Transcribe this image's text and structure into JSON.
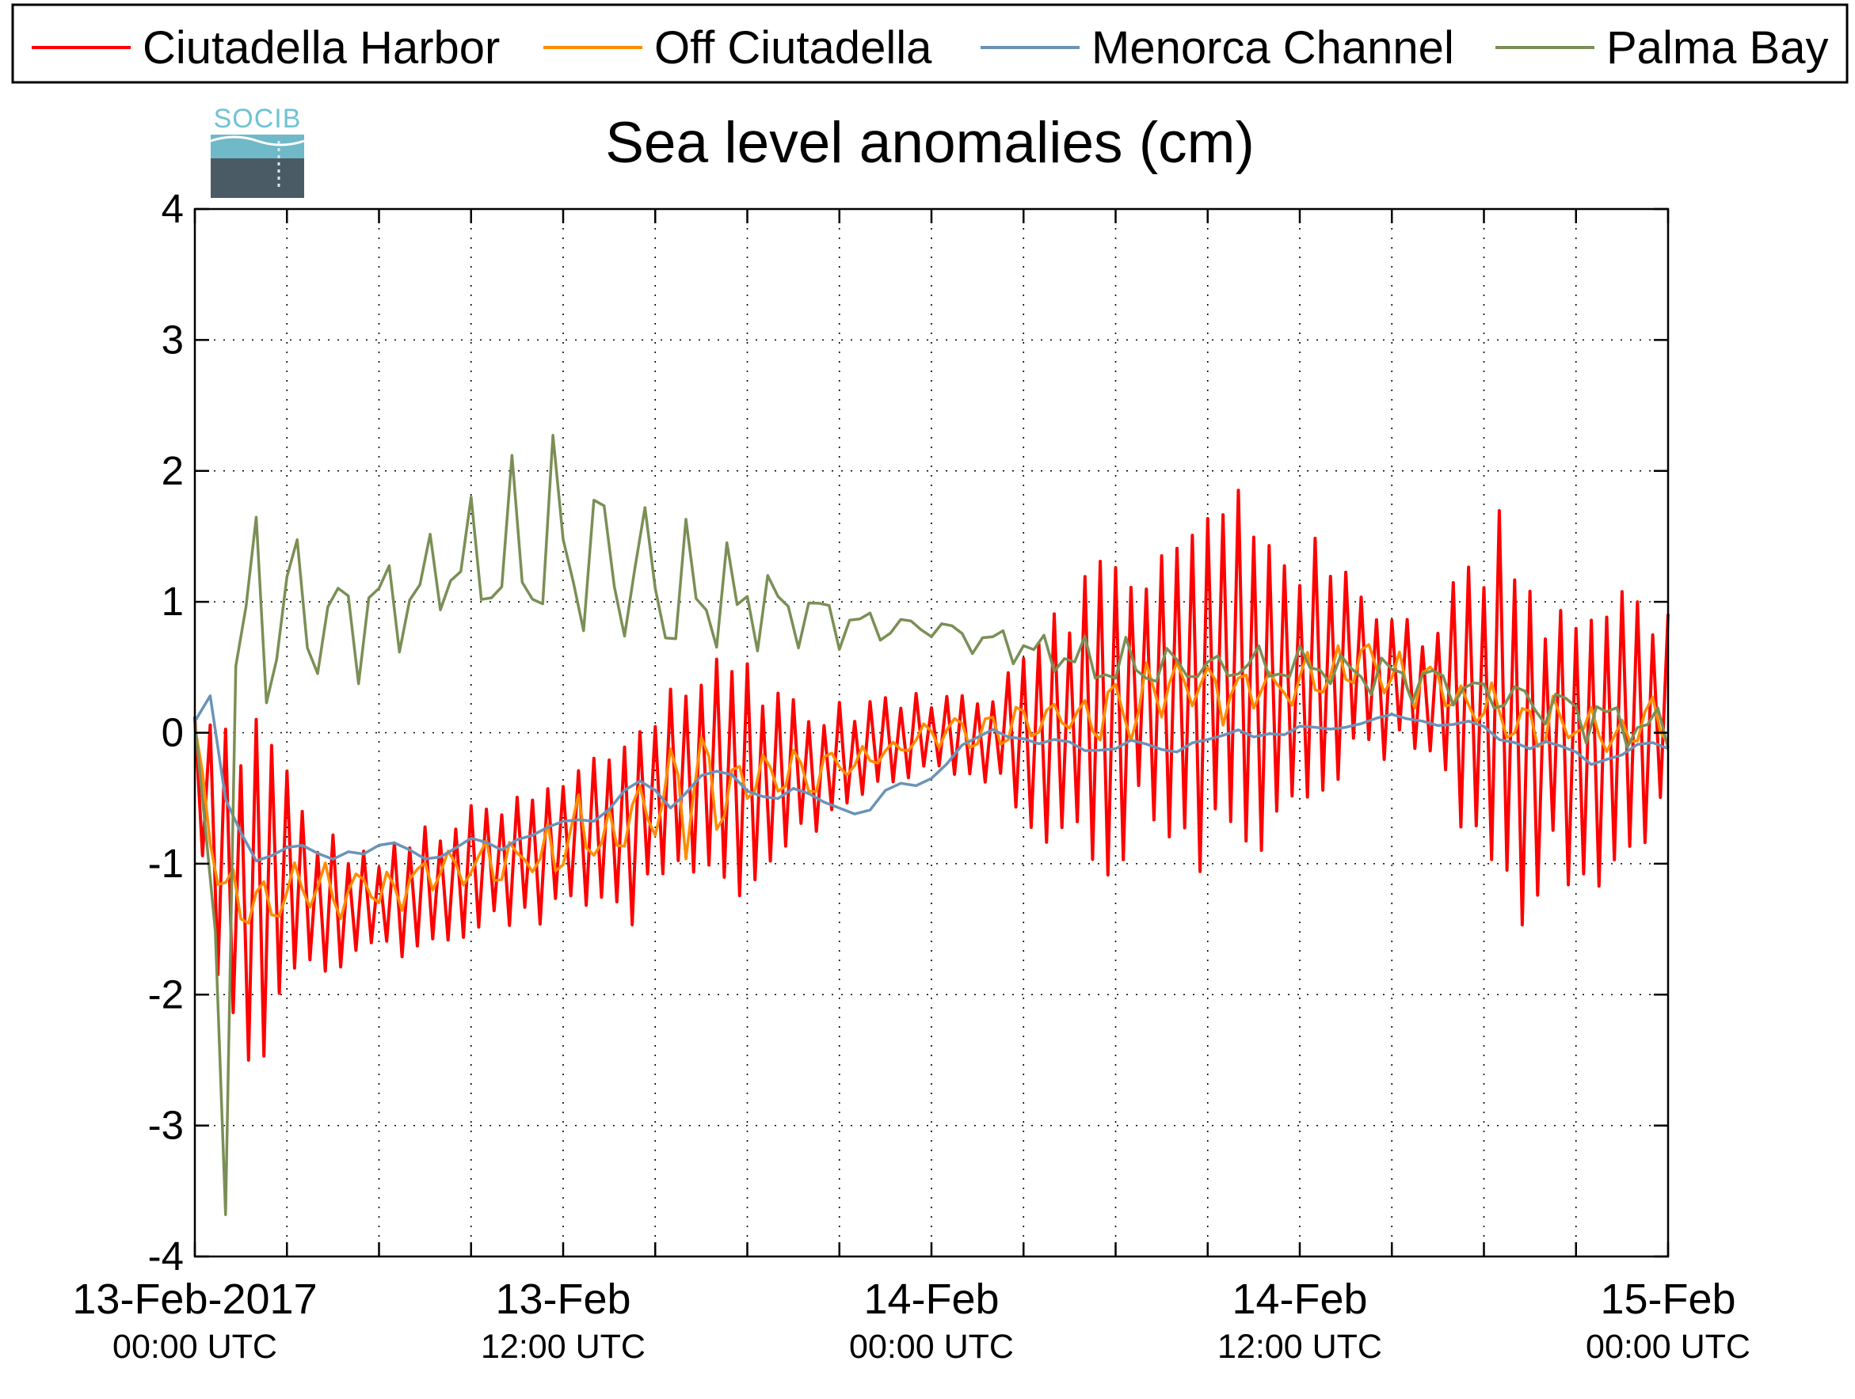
{
  "chart_data": {
    "type": "line",
    "title": "Sea level anomalies (cm)",
    "xlabel": "",
    "ylabel": "",
    "ylim": [
      -4,
      4
    ],
    "yticks": [
      "-4",
      "-3",
      "-2",
      "-1",
      "0",
      "1",
      "2",
      "3",
      "4"
    ],
    "xlim": [
      "2017-02-13T00:00",
      "2017-02-15T00:00"
    ],
    "xtick_labels": [
      {
        "x": "2017-02-13T00:00",
        "date": "13-Feb-2017",
        "time": "00:00 UTC"
      },
      {
        "x": "2017-02-13T12:00",
        "date": "13-Feb",
        "time": "12:00 UTC"
      },
      {
        "x": "2017-02-14T00:00",
        "date": "14-Feb",
        "time": "00:00 UTC"
      },
      {
        "x": "2017-02-14T12:00",
        "date": "14-Feb",
        "time": "12:00 UTC"
      },
      {
        "x": "2017-02-15T00:00",
        "date": "15-Feb",
        "time": "00:00 UTC"
      }
    ],
    "minor_tick_interval_hours": 3,
    "grid": true,
    "legend_position": "top",
    "logo_text": "SOCIB",
    "series": [
      {
        "name": "Ciutadella Harbor",
        "color": "#ff0000",
        "sample_interval_min": 15,
        "envelope_hours": [
          0,
          1,
          2,
          3,
          4,
          6,
          8,
          10,
          12,
          14,
          16,
          18,
          19,
          20,
          22,
          24,
          26,
          28,
          30,
          31,
          32,
          34,
          36,
          38,
          40,
          42,
          43,
          44,
          46,
          48
        ],
        "envelope_mean": [
          -0.3,
          -1.0,
          -1.2,
          -1.2,
          -1.3,
          -1.3,
          -1.2,
          -1.0,
          -0.9,
          -0.7,
          -0.4,
          -0.3,
          -0.3,
          -0.3,
          -0.1,
          0.0,
          0.0,
          0.1,
          0.2,
          0.3,
          0.3,
          0.4,
          0.4,
          0.5,
          0.3,
          0.2,
          0.1,
          0.0,
          0.0,
          0.1
        ],
        "envelope_amplitude": [
          0.5,
          1.2,
          1.5,
          1.0,
          0.6,
          0.4,
          0.6,
          0.5,
          0.6,
          0.8,
          1.0,
          1.0,
          0.8,
          0.5,
          0.4,
          0.3,
          0.4,
          1.1,
          1.3,
          1.2,
          1.3,
          1.7,
          1.2,
          0.7,
          0.6,
          1.4,
          1.8,
          1.1,
          1.3,
          0.9
        ]
      },
      {
        "name": "Off Ciutadella",
        "color": "#ff8c00",
        "sample_interval_min": 15,
        "envelope_hours": [
          0,
          1,
          2,
          4,
          6,
          8,
          10,
          12,
          14,
          16,
          18,
          20,
          22,
          24,
          26,
          28,
          30,
          32,
          34,
          36,
          38,
          40,
          42,
          44,
          46,
          48
        ],
        "envelope_mean": [
          0.0,
          -1.3,
          -1.3,
          -1.2,
          -1.2,
          -1.1,
          -1.0,
          -0.9,
          -0.7,
          -0.5,
          -0.3,
          -0.3,
          -0.2,
          0.0,
          0.0,
          0.1,
          0.2,
          0.3,
          0.3,
          0.4,
          0.5,
          0.4,
          0.2,
          0.1,
          0.0,
          0.1
        ],
        "envelope_amplitude": [
          0.3,
          0.4,
          0.3,
          0.2,
          0.2,
          0.2,
          0.3,
          0.3,
          0.5,
          0.5,
          0.3,
          0.2,
          0.1,
          0.1,
          0.15,
          0.2,
          0.25,
          0.25,
          0.25,
          0.2,
          0.2,
          0.2,
          0.25,
          0.25,
          0.2,
          0.25
        ]
      },
      {
        "name": "Menorca Channel",
        "color": "#6a93b8",
        "sample_interval_min": 30,
        "envelope_hours": [
          0,
          0.5,
          1,
          2,
          4,
          6,
          8,
          10,
          12,
          14,
          16,
          18,
          20,
          22,
          24,
          26,
          28,
          30,
          32,
          34,
          36,
          38,
          40,
          42,
          44,
          46,
          48
        ],
        "envelope_mean": [
          0.1,
          0.2,
          -0.5,
          -0.9,
          -0.9,
          -0.9,
          -0.9,
          -0.85,
          -0.7,
          -0.5,
          -0.4,
          -0.4,
          -0.5,
          -0.6,
          -0.3,
          0.0,
          -0.1,
          -0.1,
          -0.1,
          0.0,
          0.0,
          0.1,
          0.1,
          0.0,
          -0.1,
          -0.2,
          -0.1
        ],
        "envelope_amplitude": [
          0.05,
          0.1,
          0.2,
          0.1,
          0.07,
          0.07,
          0.07,
          0.07,
          0.1,
          0.15,
          0.15,
          0.1,
          0.1,
          0.1,
          0.07,
          0.07,
          0.07,
          0.05,
          0.05,
          0.05,
          0.05,
          0.05,
          0.05,
          0.07,
          0.07,
          0.07,
          0.07
        ]
      },
      {
        "name": "Palma Bay",
        "color": "#7a8f55",
        "sample_interval_min": 20,
        "envelope_hours": [
          0,
          0.6,
          1.0,
          1.2,
          1.6,
          2.0,
          3.0,
          4.0,
          6.0,
          8.0,
          10.0,
          11.0,
          12.0,
          14.0,
          16.0,
          18.0,
          20.0,
          22.0,
          24.0,
          26.0,
          28.0,
          30.0,
          32.0,
          36.0,
          40.0,
          44.0,
          48.0
        ],
        "envelope_mean": [
          0.0,
          -1.5,
          -3.0,
          0.5,
          0.8,
          1.0,
          1.0,
          0.8,
          1.0,
          1.2,
          1.3,
          1.4,
          1.4,
          1.3,
          1.0,
          1.0,
          0.9,
          0.8,
          0.8,
          0.7,
          0.6,
          0.5,
          0.5,
          0.5,
          0.4,
          0.2,
          0.0
        ],
        "envelope_amplitude": [
          0.2,
          0.8,
          1.0,
          1.6,
          1.5,
          1.3,
          1.1,
          0.8,
          0.6,
          0.5,
          0.8,
          1.2,
          1.0,
          0.9,
          0.8,
          0.4,
          0.3,
          0.2,
          0.15,
          0.15,
          0.2,
          0.25,
          0.2,
          0.2,
          0.2,
          0.25,
          0.2
        ]
      }
    ]
  }
}
